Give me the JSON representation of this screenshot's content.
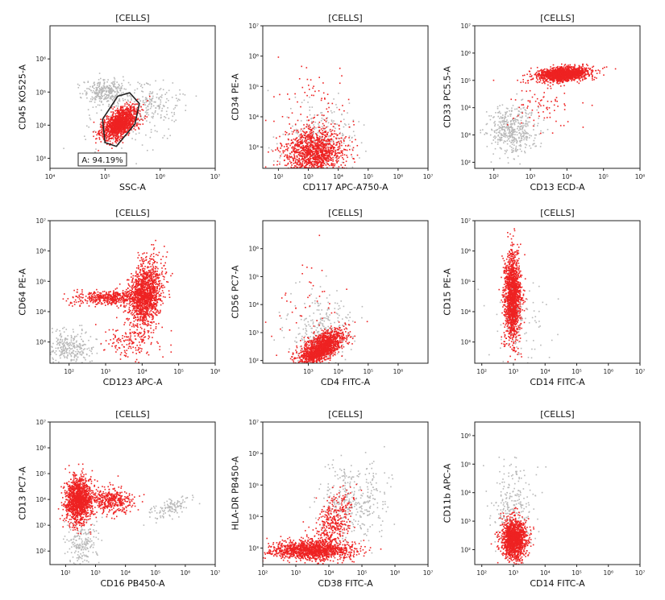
{
  "colors": {
    "gated": "#ee2222",
    "ungated": "#b8b8b8",
    "axis": "#222222",
    "gate": "#222222"
  },
  "chart_data": [
    {
      "type": "scatter",
      "title": "[CELLS]",
      "xlabel": "SSC-A",
      "ylabel": "CD45 KO525-A",
      "xlim": [
        10000,
        10000000
      ],
      "ylim": [
        500,
        10000000
      ],
      "xticks": [
        {
          "value": 10000,
          "label": "10⁴"
        },
        {
          "value": 100000,
          "label": "10⁵"
        },
        {
          "value": 1000000,
          "label": "10⁶"
        },
        {
          "value": 10000000,
          "label": "10⁷"
        }
      ],
      "yticks": [
        {
          "value": 1000,
          "label": "10³"
        },
        {
          "value": 10000,
          "label": "10⁴"
        },
        {
          "value": 100000,
          "label": "10⁵"
        },
        {
          "value": 1000000,
          "label": "10⁶"
        }
      ],
      "gate": {
        "label": "A: 94.19%",
        "polygon": [
          [
            100000,
            3000
          ],
          [
            160000,
            2300
          ],
          [
            350000,
            11000
          ],
          [
            420000,
            45000
          ],
          [
            280000,
            95000
          ],
          [
            170000,
            75000
          ],
          [
            90000,
            15000
          ]
        ]
      },
      "populations": [
        {
          "color": "ungated",
          "cx": 100000,
          "cy": 110000,
          "sx": 0.2,
          "sy": 0.18,
          "n": 300
        },
        {
          "color": "ungated",
          "cx": 700000,
          "cy": 50000,
          "sx": 0.25,
          "sy": 0.3,
          "n": 180
        },
        {
          "color": "ungated",
          "cx": 200000,
          "cy": 12000,
          "sx": 0.45,
          "sy": 0.5,
          "n": 120
        },
        {
          "color": "gated",
          "cx": 180000,
          "cy": 12000,
          "sx": 0.16,
          "sy": 0.25,
          "rho": 0.55,
          "n": 1400
        }
      ]
    },
    {
      "type": "scatter",
      "title": "[CELLS]",
      "xlabel": "CD117 APC-A750-A",
      "ylabel": "CD34 PE-A",
      "xlim": [
        30,
        10000000
      ],
      "ylim": [
        200,
        10000000
      ],
      "xticks": [
        {
          "value": 100,
          "label": "10²"
        },
        {
          "value": 1000,
          "label": "10³"
        },
        {
          "value": 10000,
          "label": "10⁴"
        },
        {
          "value": 100000,
          "label": "10⁵"
        },
        {
          "value": 1000000,
          "label": "10⁶"
        },
        {
          "value": 10000000,
          "label": "10⁷"
        }
      ],
      "yticks": [
        {
          "value": 1000,
          "label": "10³"
        },
        {
          "value": 10000,
          "label": "10⁴"
        },
        {
          "value": 100000,
          "label": "10⁵"
        },
        {
          "value": 1000000,
          "label": "10⁶"
        },
        {
          "value": 10000000,
          "label": "10⁷"
        }
      ],
      "populations": [
        {
          "color": "ungated",
          "cx": 2000,
          "cy": 2000,
          "sx": 0.6,
          "sy": 0.6,
          "n": 250
        },
        {
          "color": "gated",
          "cx": 1500,
          "cy": 700,
          "sx": 0.5,
          "sy": 0.4,
          "n": 1300
        },
        {
          "color": "gated",
          "cx": 1500,
          "cy": 30000,
          "sx": 0.7,
          "sy": 0.8,
          "n": 70
        }
      ]
    },
    {
      "type": "scatter",
      "title": "[CELLS]",
      "xlabel": "CD13 ECD-A",
      "ylabel": "CD33 PC5.5-A",
      "xlim": [
        30,
        1000000
      ],
      "ylim": [
        60,
        10000000
      ],
      "xticks": [
        {
          "value": 100,
          "label": "10²"
        },
        {
          "value": 1000,
          "label": "10³"
        },
        {
          "value": 10000,
          "label": "10⁴"
        },
        {
          "value": 100000,
          "label": "10⁵"
        },
        {
          "value": 1000000,
          "label": "10⁶"
        }
      ],
      "yticks": [
        {
          "value": 100,
          "label": "10²"
        },
        {
          "value": 1000,
          "label": "10³"
        },
        {
          "value": 10000,
          "label": "10⁴"
        },
        {
          "value": 100000,
          "label": "10⁵"
        },
        {
          "value": 1000000,
          "label": "10⁶"
        },
        {
          "value": 10000000,
          "label": "10⁷"
        }
      ],
      "populations": [
        {
          "color": "ungated",
          "cx": 300,
          "cy": 1500,
          "sx": 0.35,
          "sy": 0.45,
          "n": 450
        },
        {
          "color": "gated",
          "cx": 8000,
          "cy": 180000,
          "sx": 0.35,
          "sy": 0.13,
          "rho": 0.3,
          "n": 1500
        },
        {
          "color": "gated",
          "cx": 2000,
          "cy": 15000,
          "sx": 0.5,
          "sy": 0.5,
          "n": 80
        }
      ]
    },
    {
      "type": "scatter",
      "title": "[CELLS]",
      "xlabel": "CD123 APC-A",
      "ylabel": "CD64 PE-A",
      "xlim": [
        30,
        1000000
      ],
      "ylim": [
        200,
        10000000
      ],
      "xticks": [
        {
          "value": 100,
          "label": "10²"
        },
        {
          "value": 1000,
          "label": "10³"
        },
        {
          "value": 10000,
          "label": "10⁴"
        },
        {
          "value": 100000,
          "label": "10⁵"
        },
        {
          "value": 1000000,
          "label": "10⁶"
        }
      ],
      "yticks": [
        {
          "value": 1000,
          "label": "10³"
        },
        {
          "value": 10000,
          "label": "10⁴"
        },
        {
          "value": 100000,
          "label": "10⁵"
        },
        {
          "value": 1000000,
          "label": "10⁶"
        },
        {
          "value": 10000000,
          "label": "10⁷"
        }
      ],
      "populations": [
        {
          "color": "ungated",
          "cx": 100,
          "cy": 700,
          "sx": 0.35,
          "sy": 0.3,
          "n": 300
        },
        {
          "color": "gated",
          "cx": 12000,
          "cy": 40000,
          "sx": 0.22,
          "sy": 0.55,
          "rho": 0.2,
          "n": 1300
        },
        {
          "color": "gated",
          "cx": 1500,
          "cy": 30000,
          "sx": 0.55,
          "sy": 0.13,
          "n": 500
        },
        {
          "color": "gated",
          "cx": 5000,
          "cy": 1000,
          "sx": 0.4,
          "sy": 0.3,
          "n": 150
        }
      ]
    },
    {
      "type": "scatter",
      "title": "[CELLS]",
      "xlabel": "CD4 FITC-A",
      "ylabel": "CD56 PC7-A",
      "xlim": [
        30,
        10000000
      ],
      "ylim": [
        80,
        10000000
      ],
      "xticks": [
        {
          "value": 1000,
          "label": "10³"
        },
        {
          "value": 10000,
          "label": "10⁴"
        },
        {
          "value": 100000,
          "label": "10⁵"
        },
        {
          "value": 1000000,
          "label": "10⁶"
        }
      ],
      "yticks": [
        {
          "value": 100,
          "label": "10²"
        },
        {
          "value": 1000,
          "label": "10³"
        },
        {
          "value": 10000,
          "label": "10⁴"
        },
        {
          "value": 100000,
          "label": "10⁵"
        },
        {
          "value": 1000000,
          "label": "10⁶"
        }
      ],
      "populations": [
        {
          "color": "ungated",
          "cx": 3000,
          "cy": 1000,
          "sx": 0.55,
          "sy": 0.6,
          "n": 300
        },
        {
          "color": "gated",
          "cx": 2500,
          "cy": 300,
          "sx": 0.38,
          "sy": 0.3,
          "rho": 0.65,
          "n": 1500
        },
        {
          "color": "gated",
          "cx": 1000,
          "cy": 5000,
          "sx": 0.6,
          "sy": 0.8,
          "n": 60
        }
      ]
    },
    {
      "type": "scatter",
      "title": "[CELLS]",
      "xlabel": "CD14 FITC-A",
      "ylabel": "CD15 PE-A",
      "xlim": [
        60,
        10000000
      ],
      "ylim": [
        200,
        10000000
      ],
      "xticks": [
        {
          "value": 100,
          "label": "10²"
        },
        {
          "value": 1000,
          "label": "10³"
        },
        {
          "value": 10000,
          "label": "10⁴"
        },
        {
          "value": 100000,
          "label": "10⁵"
        },
        {
          "value": 1000000,
          "label": "10⁶"
        },
        {
          "value": 10000000,
          "label": "10⁷"
        }
      ],
      "yticks": [
        {
          "value": 1000,
          "label": "10³"
        },
        {
          "value": 10000,
          "label": "10⁴"
        },
        {
          "value": 100000,
          "label": "10⁵"
        },
        {
          "value": 1000000,
          "label": "10⁶"
        },
        {
          "value": 10000000,
          "label": "10⁷"
        }
      ],
      "populations": [
        {
          "color": "gated",
          "cx": 900,
          "cy": 30000,
          "sx": 0.13,
          "sy": 0.7,
          "n": 1600
        },
        {
          "color": "ungated",
          "cx": 2000,
          "cy": 3000,
          "sx": 0.5,
          "sy": 0.8,
          "n": 80
        }
      ]
    },
    {
      "type": "scatter",
      "title": "[CELLS]",
      "xlabel": "CD16 PB450-A",
      "ylabel": "CD13 PC7-A",
      "xlim": [
        30,
        10000000
      ],
      "ylim": [
        30,
        10000000
      ],
      "xticks": [
        {
          "value": 100,
          "label": "10²"
        },
        {
          "value": 1000,
          "label": "10³"
        },
        {
          "value": 10000,
          "label": "10⁴"
        },
        {
          "value": 100000,
          "label": "10⁵"
        },
        {
          "value": 1000000,
          "label": "10⁶"
        },
        {
          "value": 10000000,
          "label": "10⁷"
        }
      ],
      "yticks": [
        {
          "value": 100,
          "label": "10²"
        },
        {
          "value": 1000,
          "label": "10³"
        },
        {
          "value": 10000,
          "label": "10⁴"
        },
        {
          "value": 100000,
          "label": "10⁵"
        },
        {
          "value": 1000000,
          "label": "10⁶"
        },
        {
          "value": 10000000,
          "label": "10⁷"
        }
      ],
      "populations": [
        {
          "color": "ungated",
          "cx": 300,
          "cy": 200,
          "sx": 0.3,
          "sy": 0.5,
          "n": 200
        },
        {
          "color": "ungated",
          "cx": 300000,
          "cy": 5000,
          "sx": 0.35,
          "sy": 0.2,
          "rho": 0.6,
          "n": 120
        },
        {
          "color": "gated",
          "cx": 250,
          "cy": 10000,
          "sx": 0.22,
          "sy": 0.45,
          "n": 1300
        },
        {
          "color": "gated",
          "cx": 3000,
          "cy": 10000,
          "sx": 0.4,
          "sy": 0.25,
          "n": 400
        }
      ]
    },
    {
      "type": "scatter",
      "title": "[CELLS]",
      "xlabel": "CD38 FITC-A",
      "ylabel": "HLA-DR PB450-A",
      "xlim": [
        100,
        10000000
      ],
      "ylim": [
        300,
        10000000
      ],
      "xticks": [
        {
          "value": 100,
          "label": "10²"
        },
        {
          "value": 1000,
          "label": "10³"
        },
        {
          "value": 10000,
          "label": "10⁴"
        },
        {
          "value": 100000,
          "label": "10⁵"
        },
        {
          "value": 1000000,
          "label": "10⁶"
        },
        {
          "value": 10000000,
          "label": "10⁷"
        }
      ],
      "yticks": [
        {
          "value": 1000,
          "label": "10³"
        },
        {
          "value": 10000,
          "label": "10⁴"
        },
        {
          "value": 100000,
          "label": "10⁵"
        },
        {
          "value": 1000000,
          "label": "10⁶"
        },
        {
          "value": 10000000,
          "label": "10⁷"
        }
      ],
      "populations": [
        {
          "color": "ungated",
          "cx": 50000,
          "cy": 30000,
          "sx": 0.5,
          "sy": 0.6,
          "n": 350
        },
        {
          "color": "gated",
          "cx": 3000,
          "cy": 900,
          "sx": 0.6,
          "sy": 0.15,
          "n": 1300
        },
        {
          "color": "gated",
          "cx": 12000,
          "cy": 6000,
          "sx": 0.3,
          "sy": 0.5,
          "rho": 0.5,
          "n": 400
        }
      ]
    },
    {
      "type": "scatter",
      "title": "[CELLS]",
      "xlabel": "CD14 FITC-A",
      "ylabel": "CD11b APC-A",
      "xlim": [
        60,
        10000000
      ],
      "ylim": [
        30,
        3000000
      ],
      "xticks": [
        {
          "value": 100,
          "label": "10²"
        },
        {
          "value": 1000,
          "label": "10³"
        },
        {
          "value": 10000,
          "label": "10⁴"
        },
        {
          "value": 100000,
          "label": "10⁵"
        },
        {
          "value": 1000000,
          "label": "10⁶"
        },
        {
          "value": 10000000,
          "label": "10⁷"
        }
      ],
      "yticks": [
        {
          "value": 100,
          "label": "10²"
        },
        {
          "value": 1000,
          "label": "10³"
        },
        {
          "value": 10000,
          "label": "10⁴"
        },
        {
          "value": 100000,
          "label": "10⁵"
        },
        {
          "value": 1000000,
          "label": "10⁶"
        }
      ],
      "populations": [
        {
          "color": "ungated",
          "cx": 1000,
          "cy": 3000,
          "sx": 0.35,
          "sy": 0.7,
          "n": 250
        },
        {
          "color": "gated",
          "cx": 1000,
          "cy": 250,
          "sx": 0.2,
          "sy": 0.35,
          "n": 1400
        }
      ]
    }
  ]
}
